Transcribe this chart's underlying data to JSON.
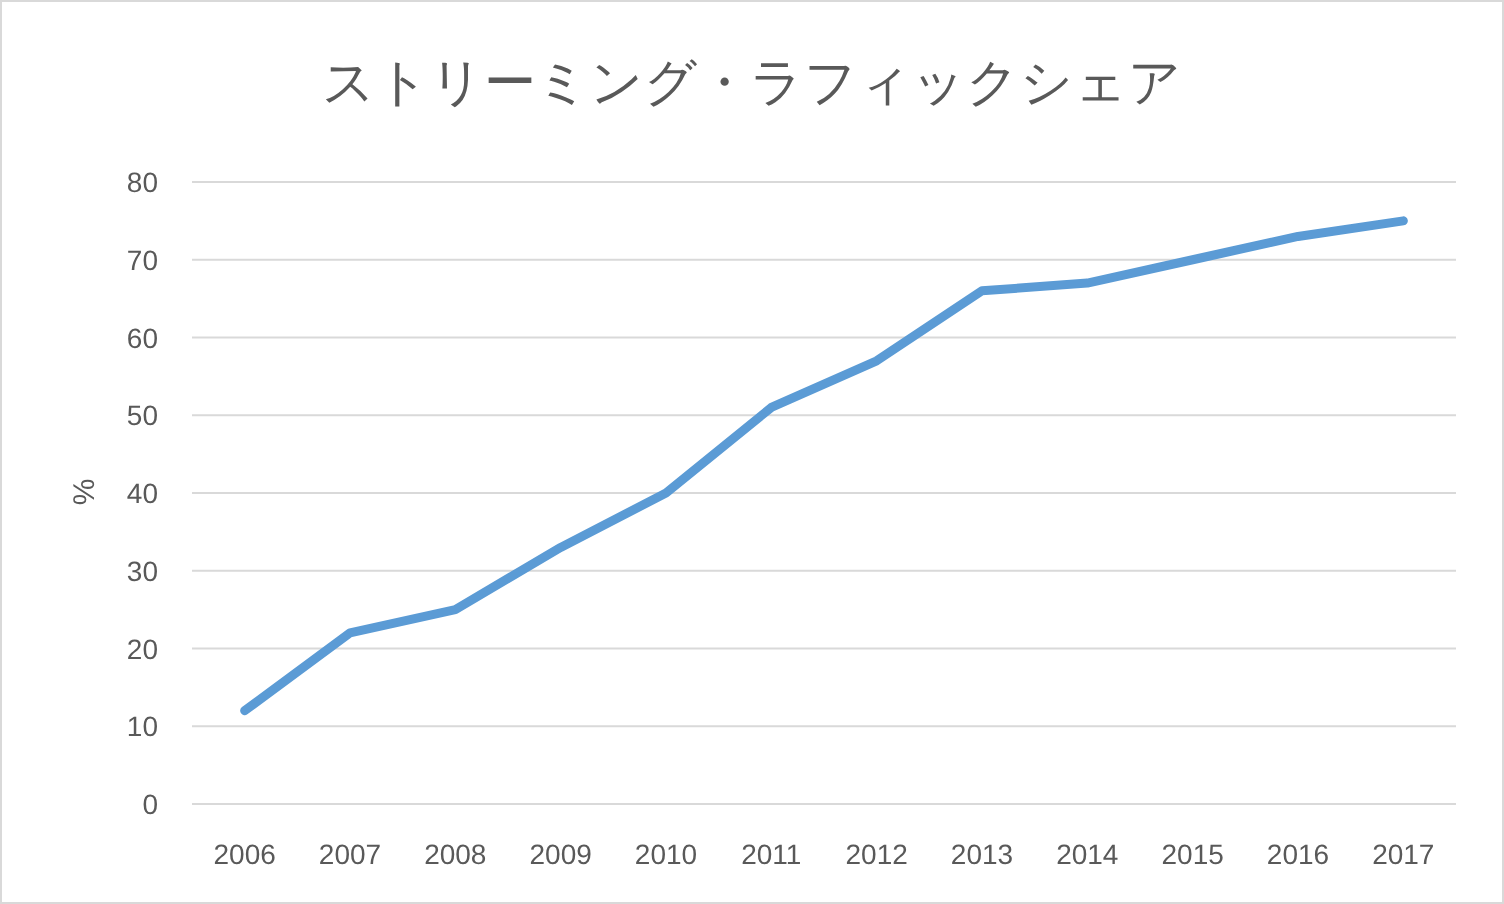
{
  "chart_data": {
    "type": "line",
    "title": "ストリーミング・ラフィックシェア",
    "ylabel": "%",
    "categories": [
      "2006",
      "2007",
      "2008",
      "2009",
      "2010",
      "2011",
      "2012",
      "2013",
      "2014",
      "2015",
      "2016",
      "2017"
    ],
    "series": [
      {
        "color": "#5b9bd5",
        "values": [
          12,
          22,
          25,
          33,
          40,
          51,
          57,
          66,
          67,
          70,
          73,
          75
        ]
      }
    ],
    "ylim": [
      0,
      80
    ],
    "yticks": [
      0,
      10,
      20,
      30,
      40,
      50,
      60,
      70,
      80
    ],
    "grid": "y"
  }
}
